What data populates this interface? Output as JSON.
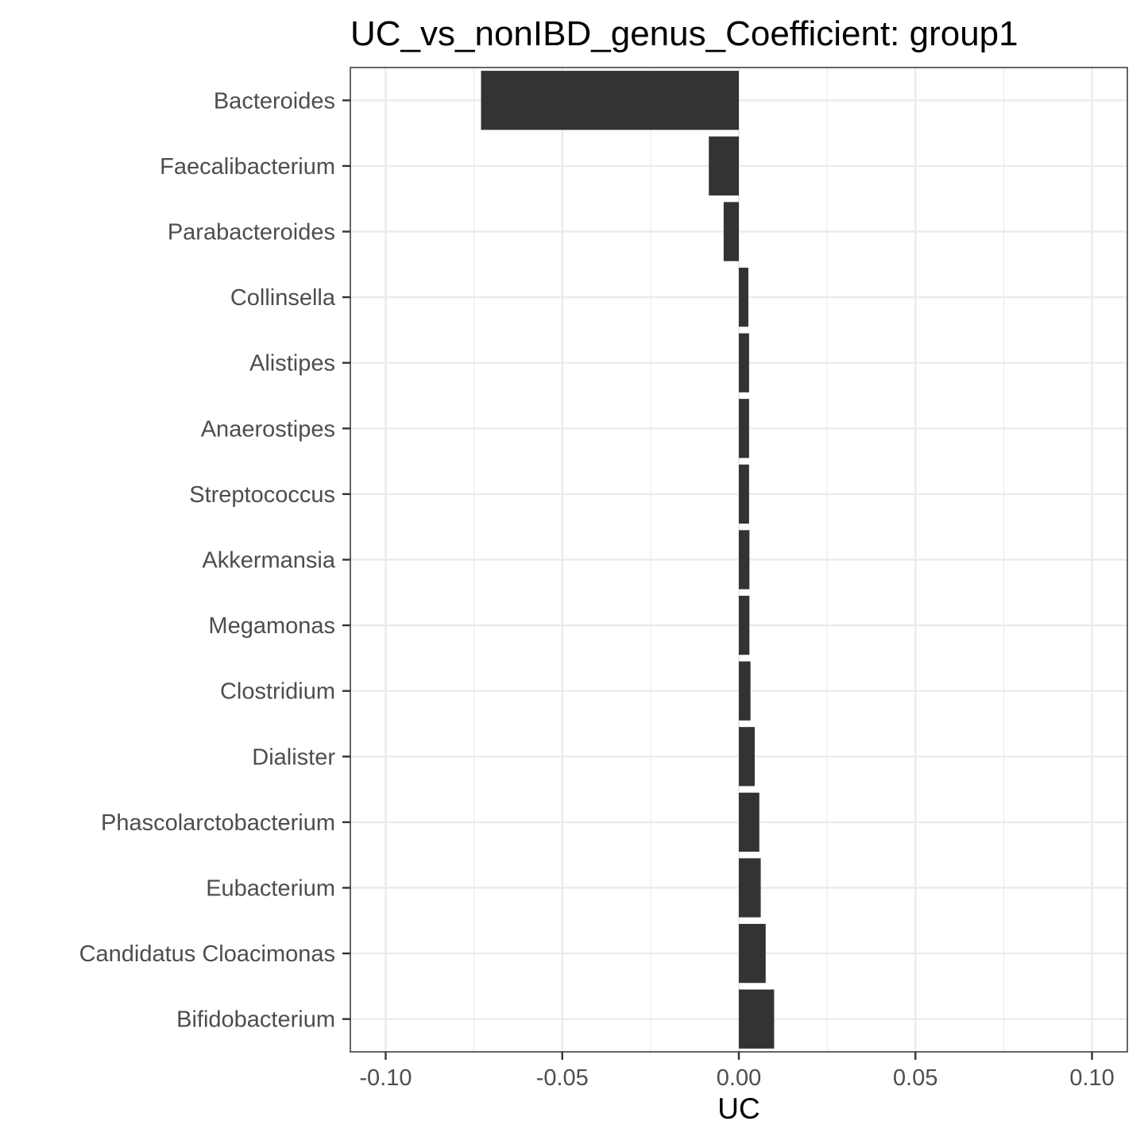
{
  "chart_data": {
    "type": "bar",
    "orientation": "horizontal",
    "title": "UC_vs_nonIBD_genus_Coefficient: group1",
    "xlabel": "UC",
    "ylabel": "",
    "xlim": [
      -0.11,
      0.11
    ],
    "xticks": [
      -0.1,
      -0.05,
      0.0,
      0.05,
      0.1
    ],
    "xtick_labels": [
      "-0.10",
      "-0.05",
      "0.00",
      "0.05",
      "0.10"
    ],
    "grid": true,
    "bar_color": "#333333",
    "categories": [
      "Bacteroides",
      "Faecalibacterium",
      "Parabacteroides",
      "Collinsella",
      "Alistipes",
      "Anaerostipes",
      "Streptococcus",
      "Akkermansia",
      "Megamonas",
      "Clostridium",
      "Dialister",
      "Phascolarctobacterium",
      "Eubacterium",
      "Candidatus Cloacimonas",
      "Bifidobacterium"
    ],
    "values": [
      -0.073,
      -0.0085,
      -0.0043,
      0.0027,
      0.0029,
      0.0029,
      0.0029,
      0.003,
      0.003,
      0.0033,
      0.0045,
      0.0058,
      0.0062,
      0.0076,
      0.01
    ]
  }
}
